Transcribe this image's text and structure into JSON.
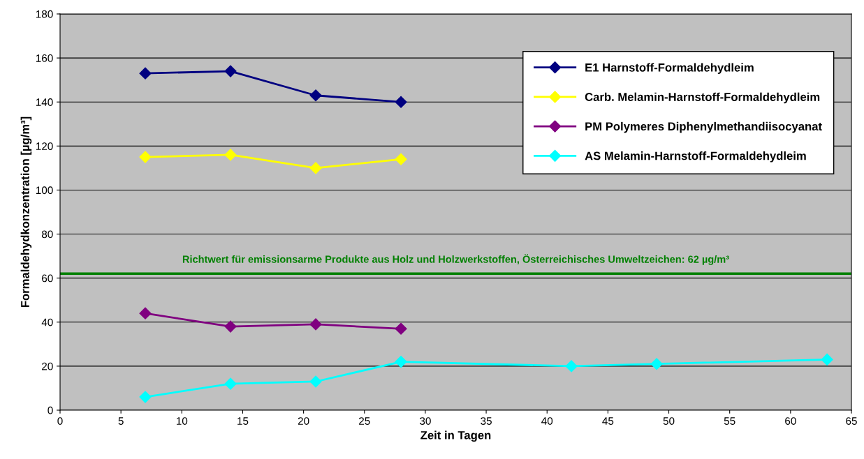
{
  "chart_data": {
    "type": "line",
    "xlabel": "Zeit in Tagen",
    "ylabel": "Formaldehydkonzentration [µg/m³]",
    "xlim": [
      0,
      65
    ],
    "xticks": [
      0,
      5,
      10,
      15,
      20,
      25,
      30,
      35,
      40,
      45,
      50,
      55,
      60,
      65
    ],
    "ylim": [
      0,
      180
    ],
    "yticks": [
      0,
      20,
      40,
      60,
      80,
      100,
      120,
      140,
      160,
      180
    ],
    "grid": "y",
    "legend": "top right",
    "marker": "diamond",
    "line_style": "solid",
    "series": [
      {
        "name": "E1 Harnstoff-Formaldehydleim",
        "color": "#000080",
        "x": [
          7,
          14,
          21,
          28
        ],
        "values": [
          153,
          154,
          143,
          140
        ]
      },
      {
        "name": "Carb. Melamin-Harnstoff-Formaldehydleim",
        "color": "#ffff00",
        "x": [
          7,
          14,
          21,
          28
        ],
        "values": [
          115,
          116,
          110,
          114
        ]
      },
      {
        "name": "PM Polymeres Diphenylmethandiisocyanat",
        "color": "#800080",
        "x": [
          7,
          14,
          21,
          28
        ],
        "values": [
          44,
          38,
          39,
          37
        ]
      },
      {
        "name": "AS Melamin-Harnstoff-Formaldehydleim",
        "color": "#00ffff",
        "x": [
          7,
          14,
          21,
          28,
          42,
          49,
          63
        ],
        "values": [
          6,
          12,
          13,
          22,
          20,
          21,
          23
        ]
      }
    ],
    "ref_lines": [
      {
        "axis": "y",
        "value": 62,
        "label": "Richtwert für emissionsarme Produkte aus Holz und Holzwerkstoffen, Österreichisches Umweltzeichen: 62 µg/m³",
        "color": "#008000",
        "line_style": "solid"
      }
    ]
  }
}
